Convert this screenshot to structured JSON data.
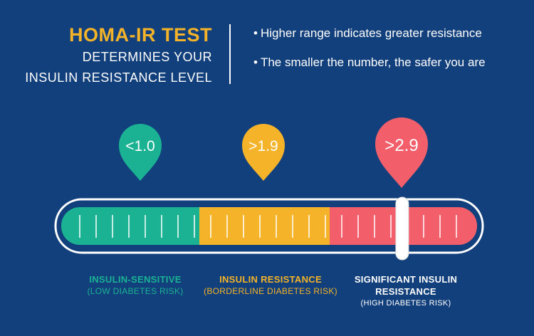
{
  "header": {
    "title": "HOMA-IR TEST",
    "subtitle_line1": "DETERMINES YOUR",
    "subtitle_line2": "INSULIN RESISTANCE LEVEL"
  },
  "bullets": [
    "Higher range indicates greater resistance",
    "The smaller the number, the safer you are"
  ],
  "bullet_symbol": "•",
  "gauge": {
    "marker_position_fraction": 0.82,
    "segments": [
      {
        "pin_value": "<1.0",
        "color": "#1bb293",
        "label": "INSULIN-SENSITIVE",
        "risk": "(LOW DIABETES RISK)"
      },
      {
        "pin_value": ">1.9",
        "color": "#f4b328",
        "label": "INSULIN RESISTANCE",
        "risk": "(BORDERLINE DIABETES RISK)"
      },
      {
        "pin_value": ">2.9",
        "color": "#f25f6a",
        "label_line1": "SIGNIFICANT INSULIN",
        "label_line2": "RESISTANCE",
        "risk": "(HIGH DIABETES RISK)"
      }
    ]
  },
  "colors": {
    "background": "#12407c",
    "outline": "#ffffff",
    "tick": "#ffffff"
  },
  "icons": [
    "map-pin-icon",
    "slider-marker-icon"
  ]
}
